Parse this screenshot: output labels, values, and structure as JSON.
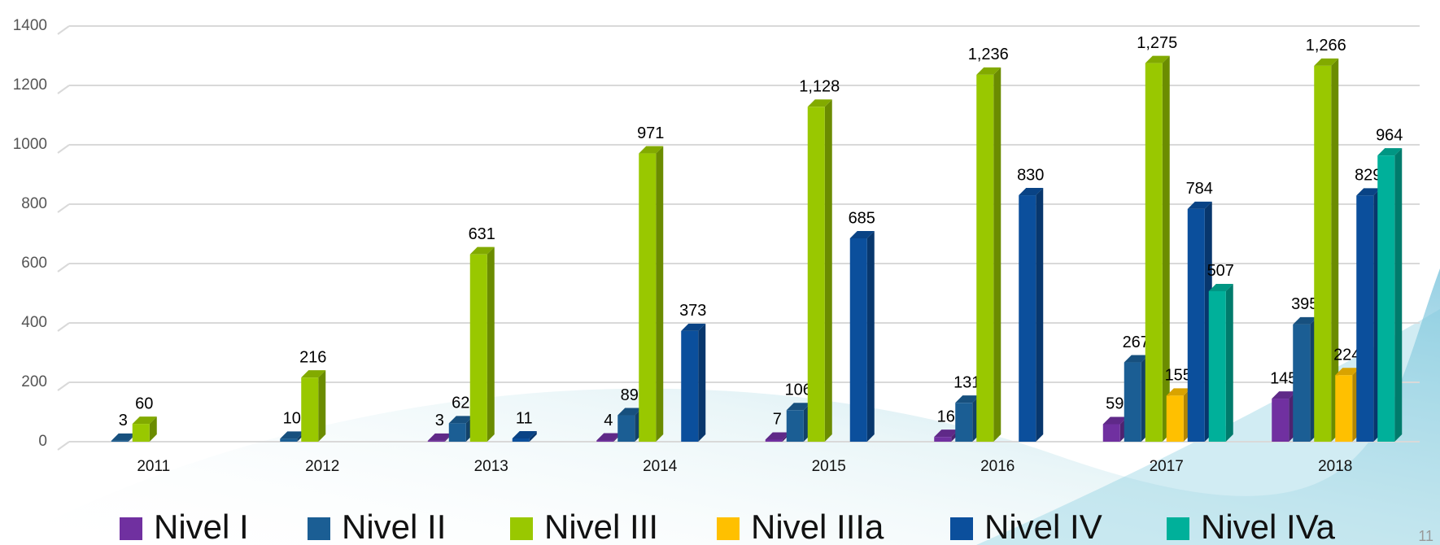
{
  "chart_data": {
    "type": "bar3d",
    "categories": [
      "2011",
      "2012",
      "2013",
      "2014",
      "2015",
      "2016",
      "2017",
      "2018"
    ],
    "series": [
      {
        "name": "Nivel I",
        "color": "#7030a0",
        "values": [
          null,
          null,
          3,
          4,
          7,
          16,
          59,
          145
        ]
      },
      {
        "name": "Nivel II",
        "color": "#1b5e94",
        "values": [
          3,
          10,
          62,
          89,
          106,
          131,
          267,
          395
        ]
      },
      {
        "name": "Nivel III",
        "color": "#99c800",
        "values": [
          60,
          216,
          631,
          971,
          1128,
          1236,
          1275,
          1266
        ],
        "value_labels": [
          "60",
          "216",
          "631",
          "971",
          "1,128",
          "1,236",
          "1,275",
          "1,266"
        ]
      },
      {
        "name": "Nivel IIIa",
        "color": "#ffc000",
        "values": [
          null,
          null,
          null,
          null,
          null,
          null,
          155,
          224
        ]
      },
      {
        "name": "Nivel IV",
        "color": "#0b4f9c",
        "values": [
          null,
          null,
          11,
          373,
          685,
          830,
          784,
          829
        ]
      },
      {
        "name": "Nivel IVa",
        "color": "#00b09a",
        "values": [
          null,
          null,
          null,
          null,
          null,
          null,
          507,
          964
        ]
      }
    ],
    "ylim": [
      0,
      1400
    ],
    "yticks": [
      0,
      200,
      400,
      600,
      800,
      1000,
      1200,
      1400
    ],
    "grid": true,
    "legend": "bottom",
    "slide_number": "11"
  }
}
